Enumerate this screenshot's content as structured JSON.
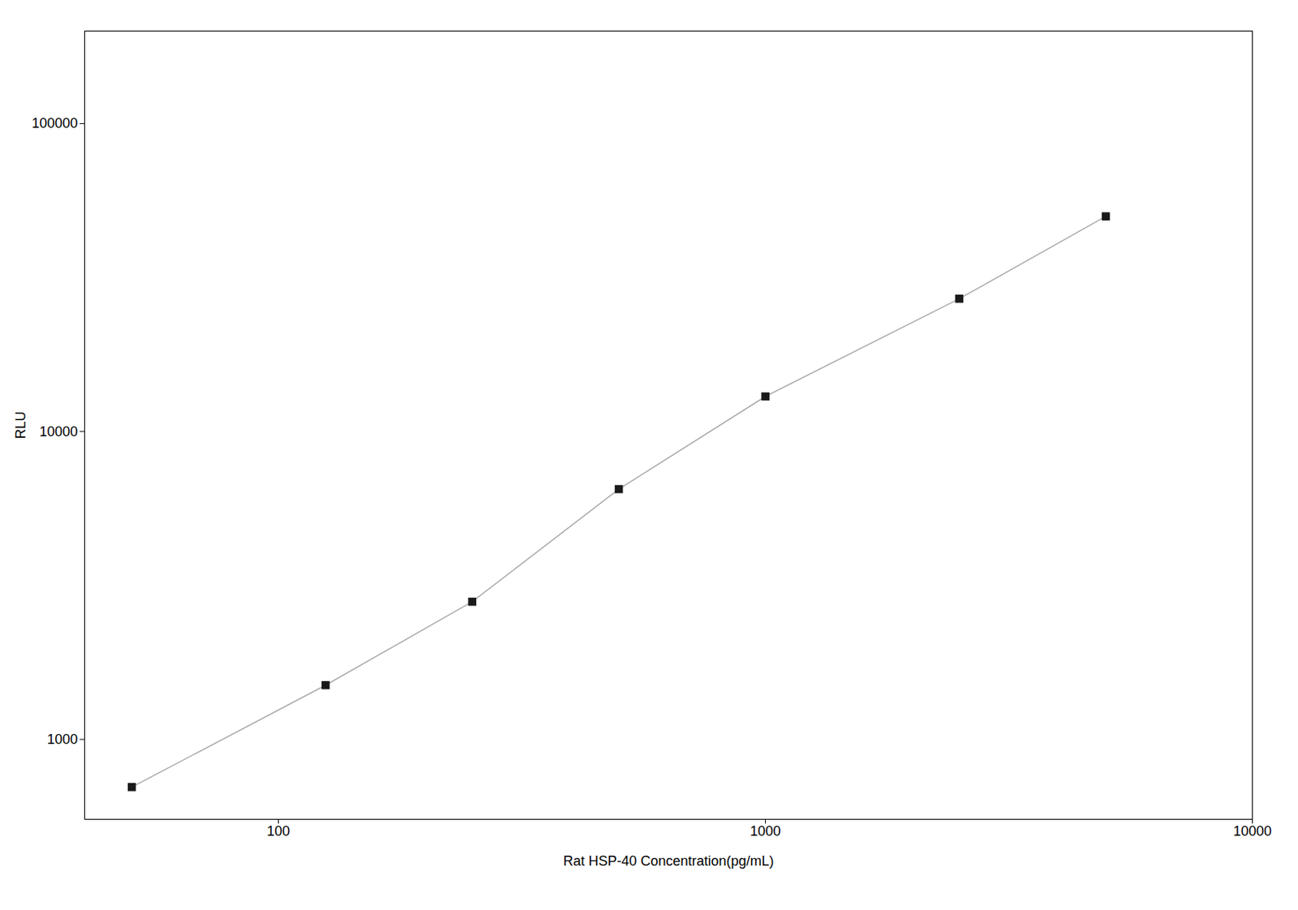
{
  "chart_data": {
    "type": "line",
    "xlabel": "Rat HSP-40 Concentration(pg/mL)",
    "ylabel": "RLU",
    "x": [
      50,
      125,
      250,
      500,
      1000,
      2500,
      5000
    ],
    "values": [
      700,
      1500,
      2800,
      6500,
      13000,
      27000,
      50000
    ],
    "color": "#aaaaaa",
    "colors": [
      "#1a1a1a",
      "#1a1a1a",
      "#1a1a1a",
      "#1a1a1a",
      "#1a1a1a",
      "#1a1a1a",
      "#1a1a1a"
    ],
    "marker": "square",
    "log": true,
    "xlim": [
      40,
      10000
    ],
    "ylim": [
      550,
      200000
    ],
    "xticks": [
      100,
      1000,
      10000
    ],
    "yticks": [
      1000,
      10000,
      100000
    ],
    "grid": false
  }
}
